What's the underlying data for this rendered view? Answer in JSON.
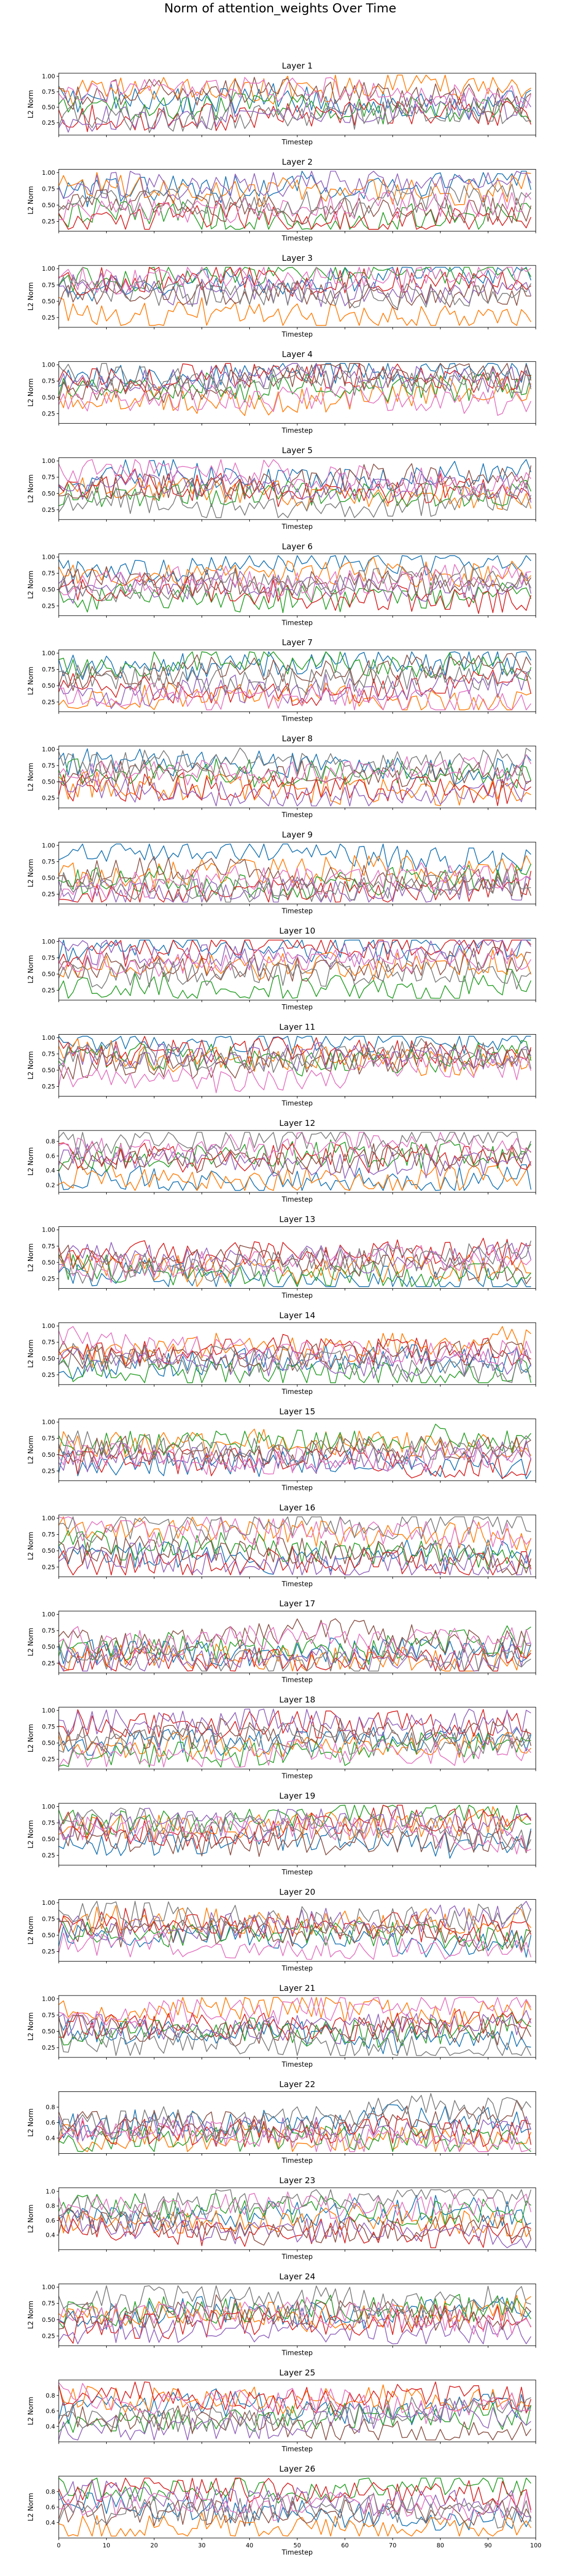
{
  "figure": {
    "suptitle": "Norm of attention_weights Over Time"
  },
  "chart_data": {
    "type": "line",
    "xlabel": "Timestep",
    "ylabel": "L2 Norm",
    "xlim": [
      0,
      100
    ],
    "x_ticks": [
      0,
      10,
      20,
      30,
      40,
      50,
      60,
      70,
      80,
      90,
      100
    ],
    "x_tick_labels_shown_on": "Layer 26",
    "n_timesteps": 100,
    "grid": false,
    "series_colors": [
      "#1f77b4",
      "#ff7f0e",
      "#2ca02c",
      "#d62728",
      "#9467bd",
      "#8c564b",
      "#e377c2",
      "#7f7f7f"
    ],
    "layers": [
      {
        "title": "Layer 1",
        "ylim": [
          0.05,
          1.05
        ],
        "yticks": [
          0.25,
          0.5,
          0.75,
          1.0
        ],
        "ytick_labels": [
          "0.25",
          "0.50",
          "0.75",
          "1.00"
        ]
      },
      {
        "title": "Layer 2",
        "ylim": [
          0.1,
          1.05
        ],
        "yticks": [
          0.25,
          0.5,
          0.75,
          1.0
        ],
        "ytick_labels": [
          "0.25",
          "0.50",
          "0.75",
          "1.00"
        ]
      },
      {
        "title": "Layer 3",
        "ylim": [
          0.1,
          1.05
        ],
        "yticks": [
          0.25,
          0.5,
          0.75,
          1.0
        ],
        "ytick_labels": [
          "0.25",
          "0.50",
          "0.75",
          "1.00"
        ]
      },
      {
        "title": "Layer 4",
        "ylim": [
          0.1,
          1.05
        ],
        "yticks": [
          0.25,
          0.5,
          0.75,
          1.0
        ],
        "ytick_labels": [
          "0.25",
          "0.50",
          "0.75",
          "1.00"
        ]
      },
      {
        "title": "Layer 5",
        "ylim": [
          0.1,
          1.05
        ],
        "yticks": [
          0.25,
          0.5,
          0.75,
          1.0
        ],
        "ytick_labels": [
          "0.25",
          "0.50",
          "0.75",
          "1.00"
        ]
      },
      {
        "title": "Layer 6",
        "ylim": [
          0.1,
          1.05
        ],
        "yticks": [
          0.25,
          0.5,
          0.75,
          1.0
        ],
        "ytick_labels": [
          "0.25",
          "0.50",
          "0.75",
          "1.00"
        ]
      },
      {
        "title": "Layer 7",
        "ylim": [
          0.1,
          1.05
        ],
        "yticks": [
          0.25,
          0.5,
          0.75,
          1.0
        ],
        "ytick_labels": [
          "0.25",
          "0.50",
          "0.75",
          "1.00"
        ]
      },
      {
        "title": "Layer 8",
        "ylim": [
          0.1,
          1.05
        ],
        "yticks": [
          0.25,
          0.5,
          0.75,
          1.0
        ],
        "ytick_labels": [
          "0.25",
          "0.50",
          "0.75",
          "1.00"
        ]
      },
      {
        "title": "Layer 9",
        "ylim": [
          0.1,
          1.05
        ],
        "yticks": [
          0.25,
          0.5,
          0.75,
          1.0
        ],
        "ytick_labels": [
          "0.25",
          "0.50",
          "0.75",
          "1.00"
        ]
      },
      {
        "title": "Layer 10",
        "ylim": [
          0.1,
          1.05
        ],
        "yticks": [
          0.25,
          0.5,
          0.75,
          1.0
        ],
        "ytick_labels": [
          "0.25",
          "0.50",
          "0.75",
          "1.00"
        ]
      },
      {
        "title": "Layer 11",
        "ylim": [
          0.1,
          1.05
        ],
        "yticks": [
          0.25,
          0.5,
          0.75,
          1.0
        ],
        "ytick_labels": [
          "0.25",
          "0.50",
          "0.75",
          "1.00"
        ]
      },
      {
        "title": "Layer 12",
        "ylim": [
          0.1,
          0.95
        ],
        "yticks": [
          0.2,
          0.4,
          0.6,
          0.8
        ],
        "ytick_labels": [
          "0.2",
          "0.4",
          "0.6",
          "0.8"
        ]
      },
      {
        "title": "Layer 13",
        "ylim": [
          0.1,
          1.05
        ],
        "yticks": [
          0.25,
          0.5,
          0.75,
          1.0
        ],
        "ytick_labels": [
          "0.25",
          "0.50",
          "0.75",
          "1.00"
        ]
      },
      {
        "title": "Layer 14",
        "ylim": [
          0.1,
          1.05
        ],
        "yticks": [
          0.25,
          0.5,
          0.75,
          1.0
        ],
        "ytick_labels": [
          "0.25",
          "0.50",
          "0.75",
          "1.00"
        ]
      },
      {
        "title": "Layer 15",
        "ylim": [
          0.1,
          1.05
        ],
        "yticks": [
          0.25,
          0.5,
          0.75,
          1.0
        ],
        "ytick_labels": [
          "0.25",
          "0.50",
          "0.75",
          "1.00"
        ]
      },
      {
        "title": "Layer 16",
        "ylim": [
          0.1,
          1.05
        ],
        "yticks": [
          0.25,
          0.5,
          0.75,
          1.0
        ],
        "ytick_labels": [
          "0.25",
          "0.50",
          "0.75",
          "1.00"
        ]
      },
      {
        "title": "Layer 17",
        "ylim": [
          0.1,
          1.05
        ],
        "yticks": [
          0.25,
          0.5,
          0.75,
          1.0
        ],
        "ytick_labels": [
          "0.25",
          "0.50",
          "0.75",
          "1.00"
        ]
      },
      {
        "title": "Layer 18",
        "ylim": [
          0.1,
          1.05
        ],
        "yticks": [
          0.25,
          0.5,
          0.75,
          1.0
        ],
        "ytick_labels": [
          "0.25",
          "0.50",
          "0.75",
          "1.00"
        ]
      },
      {
        "title": "Layer 19",
        "ylim": [
          0.1,
          1.05
        ],
        "yticks": [
          0.25,
          0.5,
          0.75,
          1.0
        ],
        "ytick_labels": [
          "0.25",
          "0.50",
          "0.75",
          "1.00"
        ]
      },
      {
        "title": "Layer 20",
        "ylim": [
          0.1,
          1.05
        ],
        "yticks": [
          0.25,
          0.5,
          0.75,
          1.0
        ],
        "ytick_labels": [
          "0.25",
          "0.50",
          "0.75",
          "1.00"
        ]
      },
      {
        "title": "Layer 21",
        "ylim": [
          0.1,
          1.05
        ],
        "yticks": [
          0.25,
          0.5,
          0.75,
          1.0
        ],
        "ytick_labels": [
          "0.25",
          "0.50",
          "0.75",
          "1.00"
        ]
      },
      {
        "title": "Layer 22",
        "ylim": [
          0.2,
          1.0
        ],
        "yticks": [
          0.4,
          0.6,
          0.8
        ],
        "ytick_labels": [
          "0.4",
          "0.6",
          "0.8"
        ]
      },
      {
        "title": "Layer 23",
        "ylim": [
          0.2,
          1.05
        ],
        "yticks": [
          0.4,
          0.6,
          0.8,
          1.0
        ],
        "ytick_labels": [
          "0.4",
          "0.6",
          "0.8",
          "1.0"
        ]
      },
      {
        "title": "Layer 24",
        "ylim": [
          0.1,
          1.05
        ],
        "yticks": [
          0.25,
          0.5,
          0.75,
          1.0
        ],
        "ytick_labels": [
          "0.25",
          "0.50",
          "0.75",
          "1.00"
        ]
      },
      {
        "title": "Layer 25",
        "ylim": [
          0.2,
          1.0
        ],
        "yticks": [
          0.4,
          0.6,
          0.8
        ],
        "ytick_labels": [
          "0.4",
          "0.6",
          "0.8"
        ]
      },
      {
        "title": "Layer 26",
        "ylim": [
          0.2,
          1.0
        ],
        "yticks": [
          0.4,
          0.6,
          0.8
        ],
        "ytick_labels": [
          "0.4",
          "0.6",
          "0.8"
        ]
      }
    ]
  }
}
